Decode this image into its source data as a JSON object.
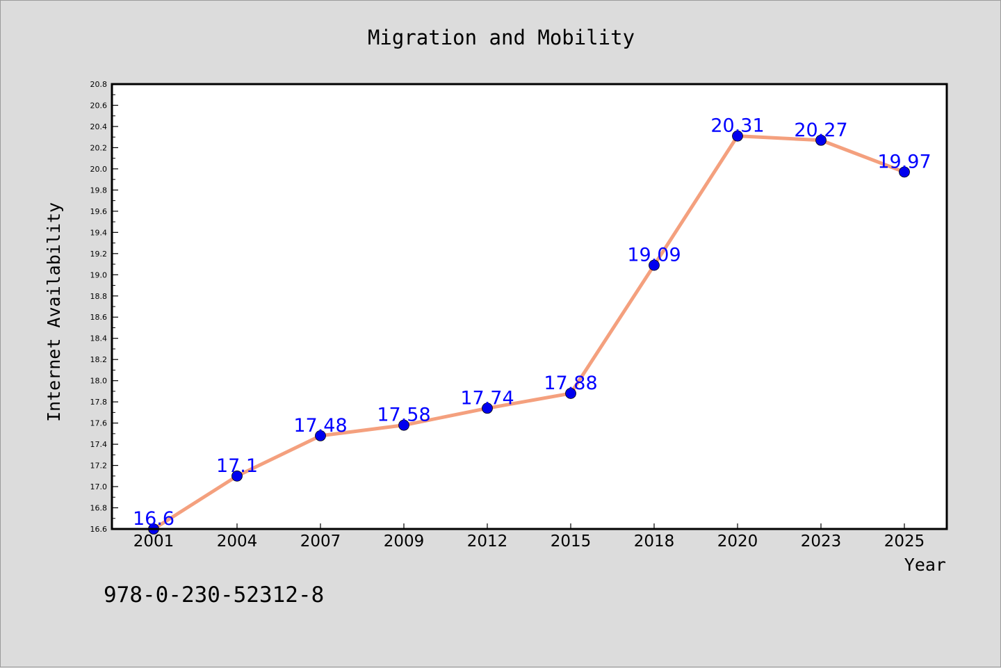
{
  "chart_data": {
    "type": "line",
    "title": "Migration and Mobility",
    "xlabel": "Year",
    "ylabel": "Internet Availability",
    "categories": [
      "2001",
      "2004",
      "2007",
      "2009",
      "2012",
      "2015",
      "2018",
      "2020",
      "2023",
      "2025"
    ],
    "series": [
      {
        "values": [
          16.6,
          17.1,
          17.48,
          17.58,
          17.74,
          17.88,
          19.09,
          20.31,
          20.27,
          19.97
        ],
        "labels": [
          "16.6",
          "17.1",
          "17.48",
          "17.58",
          "17.74",
          "17.88",
          "19.09",
          "20.31",
          "20.27",
          "19.97"
        ],
        "line_color": "#f4a07e",
        "marker_color": "#0000ee",
        "label_color": "#0000ff"
      }
    ],
    "ylim": [
      16.6,
      20.8
    ],
    "yticks": [
      "16.6",
      "16.8",
      "17.0",
      "17.2",
      "17.4",
      "17.6",
      "17.8",
      "18.0",
      "18.2",
      "18.4",
      "18.6",
      "18.8",
      "19.0",
      "19.2",
      "19.4",
      "19.6",
      "19.8",
      "20.0",
      "20.2",
      "20.4",
      "20.6",
      "20.8"
    ],
    "grid": false,
    "legend": "none",
    "background_color": "#dcdcdc",
    "plot_background_color": "#ffffff"
  },
  "footer": {
    "isbn": "978-0-230-52312-8"
  }
}
